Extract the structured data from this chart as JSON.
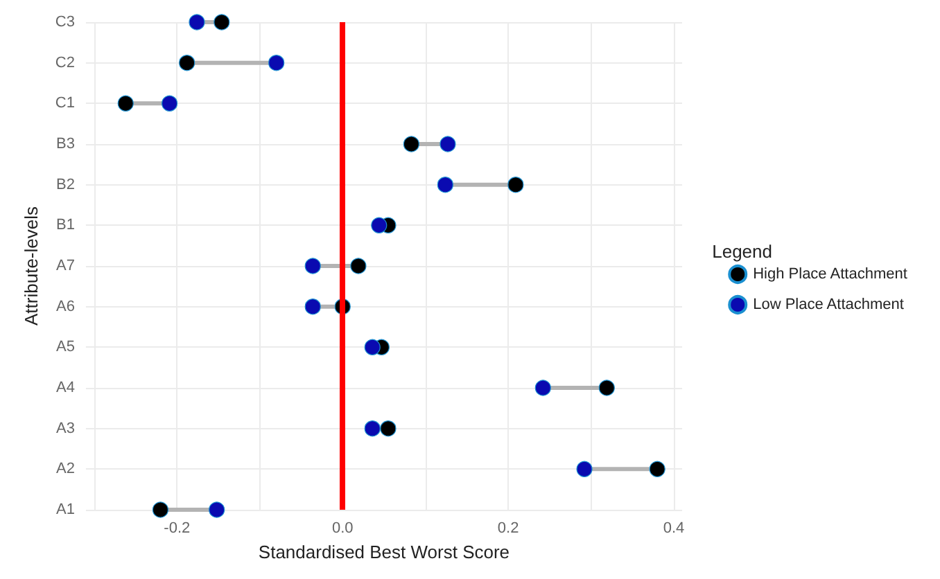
{
  "chart_data": {
    "type": "scatter",
    "orientation": "horizontal",
    "xlabel": "Standardised Best Worst Score",
    "ylabel": "Attribute-levels",
    "legend_title": "Legend",
    "legend": "right",
    "marker": "circle",
    "grid": true,
    "categories": [
      "C3",
      "C2",
      "C1",
      "B3",
      "B2",
      "B1",
      "A7",
      "A6",
      "A5",
      "A4",
      "A3",
      "A2",
      "A1"
    ],
    "xlim": [
      -0.31,
      0.41
    ],
    "xticks": [
      {
        "value": -0.3,
        "label": null
      },
      -0.2,
      {
        "value": -0.1,
        "label": null
      },
      {
        "value": 0,
        "label": "0.0"
      },
      {
        "value": 0.1,
        "label": null
      },
      0.2,
      {
        "value": 0.3,
        "label": null
      },
      0.4
    ],
    "series": [
      {
        "name": "High Place Attachment",
        "color": "#000000",
        "values": [
          -0.146,
          -0.188,
          -0.262,
          0.083,
          0.209,
          0.055,
          0.019,
          0.0,
          0.047,
          0.319,
          0.055,
          0.38,
          -0.22
        ]
      },
      {
        "name": "Low Place Attachment",
        "color": "#0a0ab0",
        "values": [
          -0.176,
          -0.08,
          -0.209,
          0.127,
          0.124,
          0.044,
          -0.036,
          -0.036,
          0.036,
          0.242,
          0.036,
          0.292,
          -0.152
        ]
      }
    ],
    "ref_lines": [
      {
        "axis": "x",
        "value": 0,
        "color": "#ff0000"
      }
    ]
  }
}
